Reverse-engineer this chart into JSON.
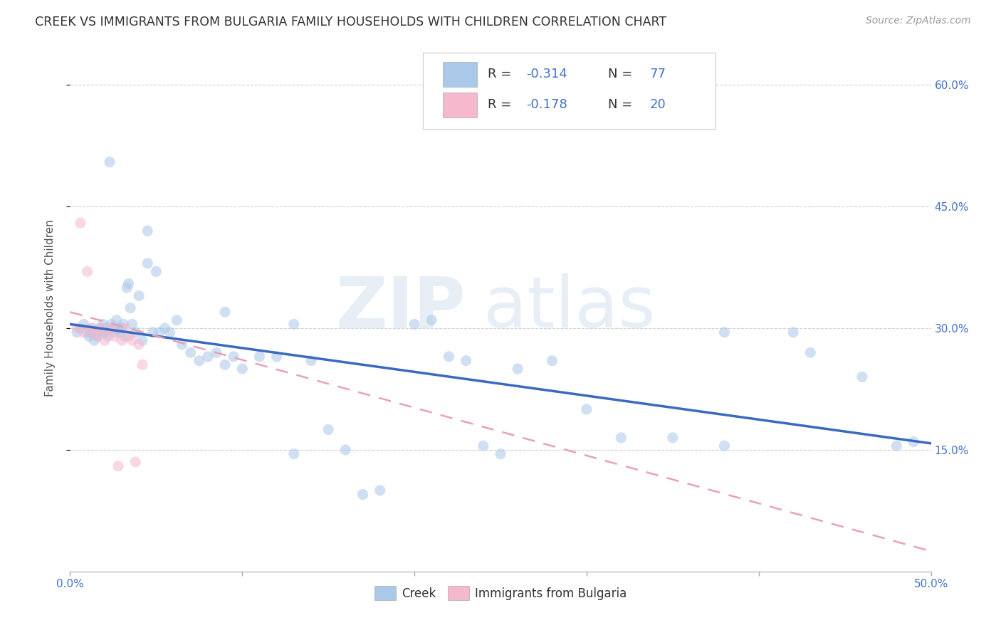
{
  "title": "CREEK VS IMMIGRANTS FROM BULGARIA FAMILY HOUSEHOLDS WITH CHILDREN CORRELATION CHART",
  "source": "Source: ZipAtlas.com",
  "ylabel": "Family Households with Children",
  "xlim": [
    0.0,
    0.5
  ],
  "ylim": [
    0.0,
    0.65
  ],
  "xticks": [
    0.0,
    0.1,
    0.2,
    0.3,
    0.4,
    0.5
  ],
  "xtick_labels": [
    "0.0%",
    "",
    "",
    "",
    "",
    "50.0%"
  ],
  "yticks_right": [
    0.15,
    0.3,
    0.45,
    0.6
  ],
  "ytick_labels_right": [
    "15.0%",
    "30.0%",
    "45.0%",
    "60.0%"
  ],
  "background_color": "#ffffff",
  "grid_color": "#cccccc",
  "creek_color": "#aac8e8",
  "bulgaria_color": "#f5b8cc",
  "creek_line_color": "#3a6abf",
  "bulgaria_line_color": "#e8a0b8",
  "text_color": "#4472c4",
  "legend_creek_R": "-0.314",
  "legend_creek_N": "77",
  "legend_bulgaria_R": "-0.178",
  "legend_bulgaria_N": "20",
  "creek_scatter_x": [
    0.004,
    0.006,
    0.008,
    0.01,
    0.011,
    0.012,
    0.013,
    0.014,
    0.015,
    0.016,
    0.017,
    0.018,
    0.019,
    0.02,
    0.021,
    0.022,
    0.023,
    0.024,
    0.025,
    0.026,
    0.027,
    0.028,
    0.029,
    0.03,
    0.031,
    0.032,
    0.033,
    0.034,
    0.035,
    0.036,
    0.038,
    0.04,
    0.042,
    0.045,
    0.048,
    0.05,
    0.052,
    0.055,
    0.058,
    0.062,
    0.065,
    0.07,
    0.075,
    0.08,
    0.085,
    0.09,
    0.095,
    0.1,
    0.11,
    0.12,
    0.13,
    0.14,
    0.15,
    0.16,
    0.17,
    0.18,
    0.2,
    0.21,
    0.22,
    0.23,
    0.24,
    0.25,
    0.26,
    0.28,
    0.3,
    0.32,
    0.35,
    0.38,
    0.43,
    0.48,
    0.49,
    0.045,
    0.09,
    0.46,
    0.42,
    0.38,
    0.13
  ],
  "creek_scatter_y": [
    0.295,
    0.3,
    0.305,
    0.295,
    0.29,
    0.295,
    0.3,
    0.285,
    0.295,
    0.29,
    0.3,
    0.295,
    0.305,
    0.295,
    0.3,
    0.29,
    0.505,
    0.305,
    0.3,
    0.295,
    0.31,
    0.3,
    0.295,
    0.3,
    0.305,
    0.29,
    0.35,
    0.355,
    0.325,
    0.305,
    0.295,
    0.34,
    0.285,
    0.38,
    0.295,
    0.37,
    0.295,
    0.3,
    0.295,
    0.31,
    0.28,
    0.27,
    0.26,
    0.265,
    0.27,
    0.255,
    0.265,
    0.25,
    0.265,
    0.265,
    0.305,
    0.26,
    0.175,
    0.15,
    0.095,
    0.1,
    0.305,
    0.31,
    0.265,
    0.26,
    0.155,
    0.145,
    0.25,
    0.26,
    0.2,
    0.165,
    0.165,
    0.295,
    0.27,
    0.155,
    0.16,
    0.42,
    0.32,
    0.24,
    0.295,
    0.155,
    0.145
  ],
  "bulgaria_scatter_x": [
    0.004,
    0.006,
    0.008,
    0.01,
    0.012,
    0.014,
    0.016,
    0.018,
    0.02,
    0.022,
    0.024,
    0.026,
    0.028,
    0.03,
    0.032,
    0.034,
    0.036,
    0.038,
    0.04,
    0.042
  ],
  "bulgaria_scatter_y": [
    0.3,
    0.43,
    0.295,
    0.37,
    0.3,
    0.295,
    0.29,
    0.3,
    0.285,
    0.295,
    0.3,
    0.29,
    0.13,
    0.285,
    0.3,
    0.29,
    0.285,
    0.135,
    0.28,
    0.255
  ],
  "creek_trend_x": [
    0.0,
    0.5
  ],
  "creek_trend_y": [
    0.305,
    0.158
  ],
  "bulgaria_trend_x": [
    0.0,
    0.5
  ],
  "bulgaria_trend_y": [
    0.32,
    0.025
  ],
  "watermark_zip": "ZIP",
  "watermark_atlas": "atlas",
  "marker_size": 120,
  "marker_alpha": 0.55,
  "title_fontsize": 12.5,
  "axis_label_fontsize": 11,
  "tick_fontsize": 11,
  "source_fontsize": 10,
  "legend_fontsize": 13
}
